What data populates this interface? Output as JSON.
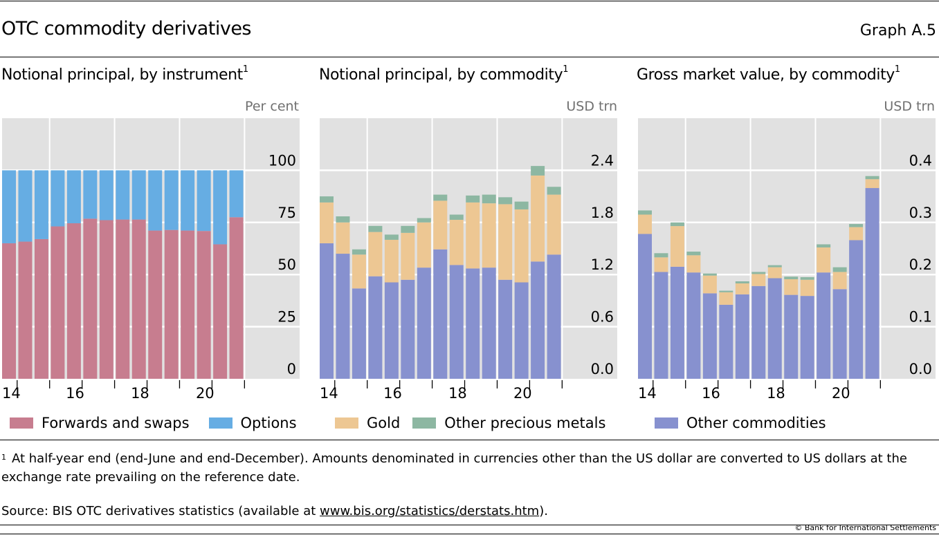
{
  "header": {
    "title": "OTC commodity derivatives",
    "graph_number": "Graph A.5"
  },
  "colors": {
    "forwards_and_swaps": "#C77D8F",
    "options": "#66ADE3",
    "gold": "#EDC793",
    "other_precious_metals": "#8DB7A2",
    "other_commodities": "#8791CF",
    "plot_background": "#E1E1E1"
  },
  "chart_data": [
    {
      "type": "bar",
      "stacked": true,
      "title": "Notional principal, by instrument",
      "title_footnote": "1",
      "ylabel": "Per cent",
      "ylim": [
        0,
        125
      ],
      "yticks": [
        "0",
        "25",
        "50",
        "75",
        "100"
      ],
      "ytick_values": [
        0,
        25,
        50,
        75,
        100
      ],
      "xtick_labels": [
        "14",
        "16",
        "18",
        "20"
      ],
      "categories": [
        "H2 2014",
        "H1 2015",
        "H2 2015",
        "H1 2016",
        "H2 2016",
        "H1 2017",
        "H2 2017",
        "H1 2018",
        "H2 2018",
        "H1 2019",
        "H2 2019",
        "H1 2020",
        "H2 2020",
        "H1 2021",
        "H2 2021"
      ],
      "series": [
        {
          "name": "Forwards and swaps",
          "color_key": "forwards_and_swaps",
          "values": [
            65.0,
            65.8,
            67.0,
            73.1,
            74.6,
            76.8,
            76.1,
            76.4,
            76.4,
            71.1,
            71.4,
            71.1,
            70.9,
            64.5,
            77.5
          ]
        },
        {
          "name": "Options",
          "color_key": "options",
          "values": [
            35.0,
            34.2,
            33.0,
            26.9,
            25.4,
            23.2,
            23.9,
            23.6,
            23.6,
            28.9,
            28.6,
            28.9,
            29.1,
            35.5,
            22.5
          ]
        }
      ],
      "grid": true,
      "legend": "bottom-left"
    },
    {
      "type": "bar",
      "stacked": true,
      "title": "Notional principal, by commodity",
      "title_footnote": "1",
      "ylabel": "USD trn",
      "ylim": [
        0,
        3.0
      ],
      "yticks": [
        "0.0",
        "0.6",
        "1.2",
        "1.8",
        "2.4"
      ],
      "ytick_values": [
        0,
        0.6,
        1.2,
        1.8,
        2.4
      ],
      "xtick_labels": [
        "14",
        "16",
        "18",
        "20"
      ],
      "categories": [
        "H2 2014",
        "H1 2015",
        "H2 2015",
        "H1 2016",
        "H2 2016",
        "H1 2017",
        "H2 2017",
        "H1 2018",
        "H2 2018",
        "H1 2019",
        "H2 2019",
        "H1 2020",
        "H2 2020",
        "H1 2021",
        "H2 2021"
      ],
      "series": [
        {
          "name": "Other commodities",
          "color_key": "other_commodities",
          "values": [
            1.56,
            1.44,
            1.04,
            1.18,
            1.11,
            1.14,
            1.28,
            1.49,
            1.31,
            1.27,
            1.28,
            1.14,
            1.11,
            1.35,
            1.43
          ]
        },
        {
          "name": "Gold",
          "color_key": "gold",
          "values": [
            0.47,
            0.36,
            0.39,
            0.51,
            0.49,
            0.54,
            0.52,
            0.56,
            0.52,
            0.76,
            0.74,
            0.87,
            0.84,
            0.99,
            0.69
          ]
        },
        {
          "name": "Other precious metals",
          "color_key": "other_precious_metals",
          "values": [
            0.07,
            0.07,
            0.06,
            0.07,
            0.06,
            0.08,
            0.05,
            0.07,
            0.06,
            0.08,
            0.1,
            0.08,
            0.09,
            0.11,
            0.09
          ]
        }
      ],
      "grid": true,
      "legend": "bottom"
    },
    {
      "type": "bar",
      "stacked": true,
      "title": "Gross market value, by commodity",
      "title_footnote": "1",
      "ylabel": "USD trn",
      "ylim": [
        0,
        0.5
      ],
      "yticks": [
        "0.0",
        "0.1",
        "0.2",
        "0.3",
        "0.4"
      ],
      "ytick_values": [
        0,
        0.1,
        0.2,
        0.3,
        0.4
      ],
      "xtick_labels": [
        "14",
        "16",
        "18",
        "20"
      ],
      "categories": [
        "H2 2014",
        "H1 2015",
        "H2 2015",
        "H1 2016",
        "H2 2016",
        "H1 2017",
        "H2 2017",
        "H1 2018",
        "H2 2018",
        "H1 2019",
        "H2 2019",
        "H1 2020",
        "H2 2020",
        "H1 2021",
        "H2 2021"
      ],
      "series": [
        {
          "name": "Other commodities",
          "color_key": "other_commodities",
          "values": [
            0.278,
            0.205,
            0.215,
            0.204,
            0.164,
            0.142,
            0.162,
            0.178,
            0.193,
            0.161,
            0.159,
            0.204,
            0.172,
            0.266,
            0.366
          ]
        },
        {
          "name": "Gold",
          "color_key": "gold",
          "values": [
            0.037,
            0.028,
            0.078,
            0.033,
            0.034,
            0.024,
            0.021,
            0.023,
            0.021,
            0.03,
            0.031,
            0.048,
            0.033,
            0.025,
            0.017
          ]
        },
        {
          "name": "Other precious metals",
          "color_key": "other_precious_metals",
          "values": [
            0.008,
            0.008,
            0.007,
            0.007,
            0.004,
            0.003,
            0.004,
            0.004,
            0.004,
            0.005,
            0.005,
            0.006,
            0.009,
            0.006,
            0.006
          ]
        }
      ],
      "grid": true,
      "legend": "bottom-right"
    }
  ],
  "legend": {
    "forwards_and_swaps": "Forwards and swaps",
    "options": "Options",
    "gold": "Gold",
    "other_precious_metals": "Other precious metals",
    "other_commodities": "Other commodities"
  },
  "footnote": {
    "marker": "1",
    "text": "At half-year end (end-June and end-December). Amounts denominated in currencies other than the US dollar are converted to US dollars at the exchange rate prevailing on the reference date."
  },
  "source": {
    "prefix": "Source: BIS OTC derivatives statistics (available at ",
    "link": "www.bis.org/statistics/derstats.htm",
    "suffix": ")."
  },
  "copyright": "© Bank for International Settlements"
}
